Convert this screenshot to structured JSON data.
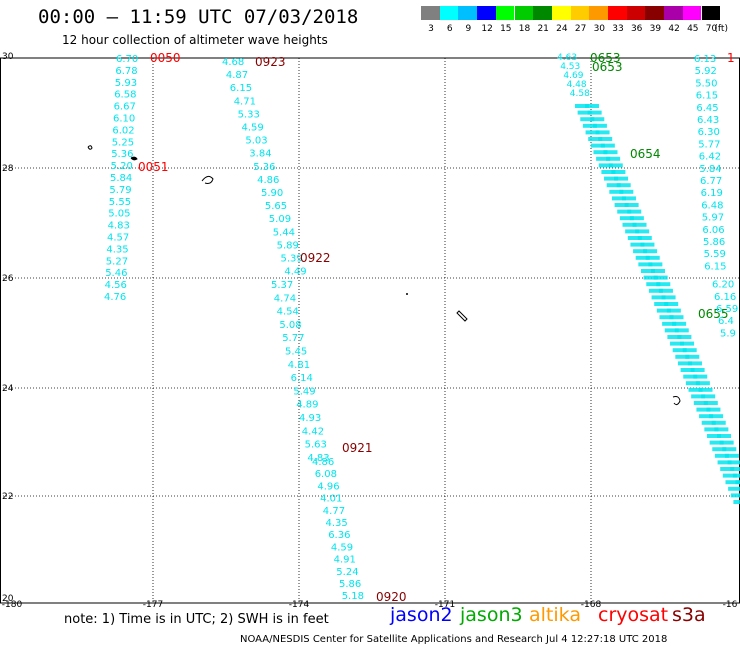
{
  "header": {
    "title": "00:00 – 11:59 UTC 07/03/2018",
    "subtitle": "12 hour collection of altimeter wave heights"
  },
  "legend": {
    "unit": "(ft)",
    "bins": [
      {
        "label": "3",
        "color": "#808080"
      },
      {
        "label": "6",
        "color": "#00ffff"
      },
      {
        "label": "9",
        "color": "#00bfff"
      },
      {
        "label": "12",
        "color": "#0000ff"
      },
      {
        "label": "15",
        "color": "#00ff00"
      },
      {
        "label": "18",
        "color": "#00cc00"
      },
      {
        "label": "21",
        "color": "#008800"
      },
      {
        "label": "24",
        "color": "#ffff00"
      },
      {
        "label": "27",
        "color": "#ffcc00"
      },
      {
        "label": "30",
        "color": "#ff9900"
      },
      {
        "label": "33",
        "color": "#ff0000"
      },
      {
        "label": "36",
        "color": "#cc0000"
      },
      {
        "label": "39",
        "color": "#880000"
      },
      {
        "label": "42",
        "color": "#aa00aa"
      },
      {
        "label": "45",
        "color": "#ff00ff"
      },
      {
        "label": "70",
        "color": "#000000"
      }
    ]
  },
  "axes": {
    "x_ticks": [
      "-180",
      "-177",
      "-174",
      "-171",
      "-168",
      "-16"
    ],
    "y_ticks": [
      "30",
      "28",
      "26",
      "24",
      "22",
      "20"
    ]
  },
  "tracks": [
    {
      "time": "0050",
      "color": "#ff0000",
      "values": [
        "6.70",
        "6.78",
        "5.93",
        "6.58",
        "6.67",
        "6.10",
        "6.02",
        "5.25",
        "5.36",
        "5.20",
        "5.84",
        "5.79",
        "5.55",
        "5.05",
        "4.83",
        "4.57",
        "4.35",
        "5.27",
        "5.46",
        "4.56",
        "4.76"
      ]
    },
    {
      "time": "0051",
      "color": "#ff0000",
      "values": []
    },
    {
      "time": "0923",
      "color": "#880000",
      "values": [
        "4.68",
        "4.87",
        "6.15",
        "4.71",
        "5.33",
        "4.59",
        "5.03",
        "3.84",
        "5.36",
        "4.86",
        "5.90",
        "5.65",
        "5.09",
        "5.44",
        "5.89",
        "5.39",
        "4.49"
      ]
    },
    {
      "time": "0922",
      "color": "#880000",
      "values": [
        "5.37",
        "4.74",
        "4.54",
        "5.08",
        "5.77",
        "5.45",
        "4.81",
        "6.14",
        "5.49",
        "4.89",
        "4.93",
        "4.42",
        "5.63",
        "4.83"
      ]
    },
    {
      "time": "0921",
      "color": "#880000",
      "values": [
        "4.86",
        "6.08",
        "4.96",
        "4.01",
        "4.77",
        "4.35",
        "6.36",
        "4.59",
        "4.91",
        "5.24",
        "5.86",
        "5.18"
      ]
    },
    {
      "time": "0920",
      "color": "#880000",
      "values": []
    },
    {
      "time": "0653",
      "color": "#008800",
      "values": [
        "4.63",
        "4.53",
        "4.69",
        "4.48",
        "4.58"
      ]
    },
    {
      "time": "0654",
      "color": "#008800",
      "values": []
    },
    {
      "time": "0655",
      "color": "#008800",
      "values": []
    },
    {
      "time": "1",
      "color": "#ff0000",
      "values": [
        "6.13",
        "5.92",
        "5.50",
        "6.15",
        "6.45",
        "6.43",
        "6.30",
        "5.77",
        "6.42",
        "5.84",
        "6.77",
        "6.19",
        "6.48",
        "5.97",
        "6.06",
        "5.86",
        "5.59",
        "6.15",
        "6.20",
        "6.16",
        "6.59",
        "6.4",
        "5.9"
      ]
    }
  ],
  "note": "note: 1) Time is in UTC; 2) SWH is in feet",
  "satellites": [
    {
      "name": "jason2",
      "color": "#0000ff"
    },
    {
      "name": "jason3",
      "color": "#00aa00"
    },
    {
      "name": "altika",
      "color": "#ff9900"
    },
    {
      "name": "cryosat",
      "color": "#ff0000"
    },
    {
      "name": "s3a",
      "color": "#880000"
    }
  ],
  "credit": "NOAA/NESDIS Center for Satellite Applications and Research   Jul  4 12:27:18 UTC 2018"
}
